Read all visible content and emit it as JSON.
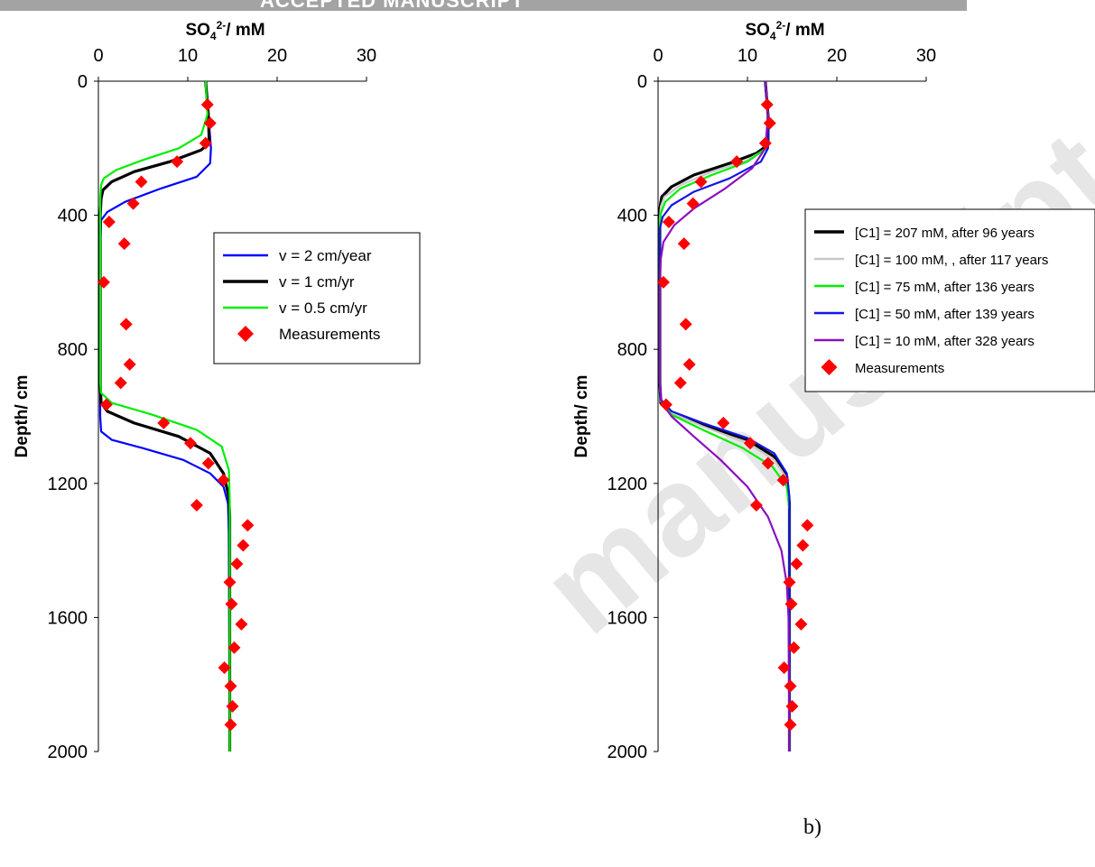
{
  "banner_text": "ACCEPTED MANUSCRIPT",
  "watermark_text": "manuscript",
  "panel_label": "b)",
  "colors": {
    "marker": "#ff0000",
    "v2": "#0000ff",
    "v1": "#000000",
    "v05": "#00ee00",
    "c207": "#000000",
    "c100": "#c8c8c8",
    "c75": "#00ee00",
    "c50": "#1414e6",
    "c10": "#8a10c0"
  },
  "chart_data": [
    {
      "type": "line",
      "x_axis": {
        "label": "SO4 2-/ mM",
        "label_main": "SO",
        "label_sub": "4",
        "label_sup": "2-",
        "label_rest": "/ mM",
        "range": [
          0,
          30
        ],
        "ticks": [
          "0",
          "10",
          "20",
          "30"
        ],
        "position": "top"
      },
      "y_axis": {
        "label": "Depth/ cm",
        "range": [
          0,
          2000
        ],
        "inverted": true,
        "ticks": [
          "0",
          "400",
          "800",
          "1200",
          "1600",
          "2000"
        ]
      },
      "legend_position": "right",
      "series": [
        {
          "key": "v2",
          "name": "v = 2 cm/year",
          "color": "#0000ff",
          "points": [
            [
              12,
              0
            ],
            [
              12.3,
              100
            ],
            [
              12.6,
              200
            ],
            [
              12.5,
              245
            ],
            [
              11,
              285
            ],
            [
              7,
              320
            ],
            [
              3,
              360
            ],
            [
              1,
              390
            ],
            [
              0.3,
              415
            ],
            [
              0.2,
              500
            ],
            [
              0.2,
              900
            ],
            [
              0.2,
              1000
            ],
            [
              0.3,
              1045
            ],
            [
              1.5,
              1070
            ],
            [
              5,
              1095
            ],
            [
              9.5,
              1130
            ],
            [
              12.5,
              1170
            ],
            [
              14,
              1210
            ],
            [
              14.5,
              1260
            ],
            [
              14.6,
              1350
            ],
            [
              14.7,
              2000
            ]
          ]
        },
        {
          "key": "v1",
          "name": "v = 1 cm/yr",
          "color": "#000000",
          "points": [
            [
              12,
              0
            ],
            [
              12.3,
              100
            ],
            [
              12.4,
              185
            ],
            [
              11.5,
              205
            ],
            [
              8,
              240
            ],
            [
              4,
              270
            ],
            [
              1.5,
              300
            ],
            [
              0.5,
              325
            ],
            [
              0.3,
              350
            ],
            [
              0.2,
              400
            ],
            [
              0.2,
              900
            ],
            [
              0.3,
              960
            ],
            [
              1,
              985
            ],
            [
              4,
              1020
            ],
            [
              9,
              1060
            ],
            [
              12.5,
              1110
            ],
            [
              14,
              1170
            ],
            [
              14.6,
              1240
            ],
            [
              14.7,
              1300
            ],
            [
              14.7,
              2000
            ]
          ]
        },
        {
          "key": "v05",
          "name": " v = 0.5 cm/yr",
          "color": "#00ee00",
          "points": [
            [
              12,
              0
            ],
            [
              12.2,
              100
            ],
            [
              11.5,
              160
            ],
            [
              9,
              200
            ],
            [
              5,
              235
            ],
            [
              2,
              265
            ],
            [
              0.6,
              290
            ],
            [
              0.3,
              310
            ],
            [
              0.2,
              350
            ],
            [
              0.2,
              900
            ],
            [
              0.3,
              930
            ],
            [
              1.5,
              960
            ],
            [
              6,
              995
            ],
            [
              11,
              1040
            ],
            [
              13.8,
              1090
            ],
            [
              14.6,
              1160
            ],
            [
              14.7,
              1250
            ],
            [
              14.7,
              2000
            ]
          ]
        }
      ],
      "measurements": {
        "name": "Measurements",
        "color": "#ff0000",
        "points": [
          [
            12.2,
            70
          ],
          [
            12.5,
            125
          ],
          [
            12,
            185
          ],
          [
            8.8,
            240
          ],
          [
            4.8,
            300
          ],
          [
            3.9,
            365
          ],
          [
            1.2,
            420
          ],
          [
            2.9,
            485
          ],
          [
            0.6,
            600
          ],
          [
            3.1,
            725
          ],
          [
            3.5,
            845
          ],
          [
            2.5,
            900
          ],
          [
            0.9,
            965
          ],
          [
            7.3,
            1020
          ],
          [
            10.3,
            1080
          ],
          [
            12.3,
            1140
          ],
          [
            14,
            1190
          ],
          [
            11,
            1265
          ],
          [
            16.7,
            1325
          ],
          [
            16.2,
            1385
          ],
          [
            15.5,
            1440
          ],
          [
            14.7,
            1495
          ],
          [
            14.9,
            1560
          ],
          [
            16,
            1620
          ],
          [
            15.2,
            1690
          ],
          [
            14.1,
            1750
          ],
          [
            14.8,
            1805
          ],
          [
            15,
            1865
          ],
          [
            14.8,
            1920
          ]
        ]
      },
      "legend": [
        {
          "label": "v = 2 cm/year",
          "marker": "line",
          "color": "#0000ff"
        },
        {
          "label": "v = 1 cm/yr",
          "marker": "line",
          "color": "#000000"
        },
        {
          "label": " v = 0.5 cm/yr",
          "marker": "line",
          "color": "#00ee00"
        },
        {
          "label": "Measurements",
          "marker": "diamond",
          "color": "#ff0000"
        }
      ]
    },
    {
      "type": "line",
      "x_axis": {
        "label": "SO4 2-/ mM",
        "label_main": "SO",
        "label_sub": "4",
        "label_sup": "2-",
        "label_rest": "/ mM",
        "range": [
          0,
          30
        ],
        "ticks": [
          "0",
          "10",
          "20",
          "30"
        ],
        "position": "top"
      },
      "y_axis": {
        "label": "Depth/ cm",
        "range": [
          0,
          2000
        ],
        "inverted": true,
        "ticks": [
          "0",
          "400",
          "800",
          "1200",
          "1600",
          "2000"
        ]
      },
      "legend_position": "right",
      "series": [
        {
          "key": "c207",
          "name": "[C1] = 207 mM, after 96 years",
          "color": "#000000",
          "points": [
            [
              12,
              0
            ],
            [
              12.3,
              100
            ],
            [
              12.3,
              190
            ],
            [
              11,
              215
            ],
            [
              8,
              245
            ],
            [
              4,
              280
            ],
            [
              1.5,
              315
            ],
            [
              0.4,
              345
            ],
            [
              0.2,
              380
            ],
            [
              0.2,
              900
            ],
            [
              0.3,
              960
            ],
            [
              1.5,
              990
            ],
            [
              5,
              1025
            ],
            [
              10,
              1070
            ],
            [
              13,
              1120
            ],
            [
              14.4,
              1180
            ],
            [
              14.7,
              1260
            ],
            [
              14.7,
              2000
            ]
          ]
        },
        {
          "key": "c100",
          "name": "[C1] = 100 mM, , after 117 years",
          "color": "#c8c8c8",
          "points": [
            [
              12,
              0
            ],
            [
              12.3,
              100
            ],
            [
              12.2,
              200
            ],
            [
              10,
              235
            ],
            [
              6,
              270
            ],
            [
              2.5,
              310
            ],
            [
              0.7,
              345
            ],
            [
              0.3,
              375
            ],
            [
              0.2,
              410
            ],
            [
              0.2,
              900
            ],
            [
              0.3,
              955
            ],
            [
              1.5,
              990
            ],
            [
              5,
              1030
            ],
            [
              10,
              1080
            ],
            [
              13,
              1130
            ],
            [
              14.4,
              1185
            ],
            [
              14.7,
              1260
            ],
            [
              14.7,
              2000
            ]
          ]
        },
        {
          "key": "c75",
          "name": "[C1] = 75 mM, after 136 years",
          "color": "#00ee00",
          "points": [
            [
              12,
              0
            ],
            [
              12.3,
              100
            ],
            [
              12.1,
              200
            ],
            [
              10,
              240
            ],
            [
              6,
              280
            ],
            [
              2.5,
              320
            ],
            [
              0.8,
              360
            ],
            [
              0.3,
              395
            ],
            [
              0.2,
              430
            ],
            [
              0.2,
              900
            ],
            [
              0.3,
              955
            ],
            [
              1.5,
              995
            ],
            [
              5,
              1040
            ],
            [
              9.5,
              1095
            ],
            [
              12.8,
              1150
            ],
            [
              14.4,
              1210
            ],
            [
              14.7,
              1280
            ],
            [
              14.7,
              2000
            ]
          ]
        },
        {
          "key": "c50",
          "name": "[C1] = 50 mM, after 139 years",
          "color": "#1414e6",
          "points": [
            [
              12,
              0
            ],
            [
              12.3,
              100
            ],
            [
              12.3,
              200
            ],
            [
              11.5,
              240
            ],
            [
              8,
              290
            ],
            [
              4,
              330
            ],
            [
              1.5,
              370
            ],
            [
              0.5,
              405
            ],
            [
              0.2,
              440
            ],
            [
              0.2,
              900
            ],
            [
              0.3,
              950
            ],
            [
              1.5,
              985
            ],
            [
              5,
              1020
            ],
            [
              10,
              1065
            ],
            [
              13,
              1110
            ],
            [
              14.4,
              1170
            ],
            [
              14.7,
              1240
            ],
            [
              14.7,
              2000
            ]
          ]
        },
        {
          "key": "c10",
          "name": "[C1] = 10 mM, after 328 years",
          "color": "#8a10c0",
          "points": [
            [
              12,
              0
            ],
            [
              12.3,
              100
            ],
            [
              12,
              200
            ],
            [
              10.5,
              260
            ],
            [
              7.5,
              320
            ],
            [
              4,
              380
            ],
            [
              1.8,
              430
            ],
            [
              0.6,
              480
            ],
            [
              0.3,
              530
            ],
            [
              0.2,
              600
            ],
            [
              0.2,
              900
            ],
            [
              0.4,
              960
            ],
            [
              1.5,
              1000
            ],
            [
              4,
              1060
            ],
            [
              7,
              1130
            ],
            [
              10,
              1210
            ],
            [
              12.3,
              1300
            ],
            [
              13.8,
              1400
            ],
            [
              14.4,
              1500
            ],
            [
              14.6,
              1600
            ],
            [
              14.7,
              2000
            ]
          ]
        }
      ],
      "measurements": {
        "name": "Measurements",
        "color": "#ff0000",
        "points": [
          [
            12.2,
            70
          ],
          [
            12.5,
            125
          ],
          [
            12,
            185
          ],
          [
            8.8,
            240
          ],
          [
            4.8,
            300
          ],
          [
            3.9,
            365
          ],
          [
            1.2,
            420
          ],
          [
            2.9,
            485
          ],
          [
            0.6,
            600
          ],
          [
            3.1,
            725
          ],
          [
            3.5,
            845
          ],
          [
            2.5,
            900
          ],
          [
            0.9,
            965
          ],
          [
            7.3,
            1020
          ],
          [
            10.3,
            1080
          ],
          [
            12.3,
            1140
          ],
          [
            14,
            1190
          ],
          [
            11,
            1265
          ],
          [
            16.7,
            1325
          ],
          [
            16.2,
            1385
          ],
          [
            15.5,
            1440
          ],
          [
            14.7,
            1495
          ],
          [
            14.9,
            1560
          ],
          [
            16,
            1620
          ],
          [
            15.2,
            1690
          ],
          [
            14.1,
            1750
          ],
          [
            14.8,
            1805
          ],
          [
            15,
            1865
          ],
          [
            14.8,
            1920
          ]
        ]
      },
      "legend": [
        {
          "label": "[C1] = 207 mM, after 96 years",
          "marker": "line",
          "color": "#000000"
        },
        {
          "label": "[C1] = 100 mM, , after 117 years",
          "marker": "line",
          "color": "#c8c8c8"
        },
        {
          "label": "[C1] = 75 mM, after 136 years",
          "marker": "line",
          "color": "#00ee00"
        },
        {
          "label": "[C1] = 50 mM, after 139 years",
          "marker": "line",
          "color": "#1414e6"
        },
        {
          "label": "[C1] = 10 mM, after 328 years",
          "marker": "line",
          "color": "#8a10c0"
        },
        {
          "label": "Measurements",
          "marker": "diamond",
          "color": "#ff0000"
        }
      ]
    }
  ]
}
